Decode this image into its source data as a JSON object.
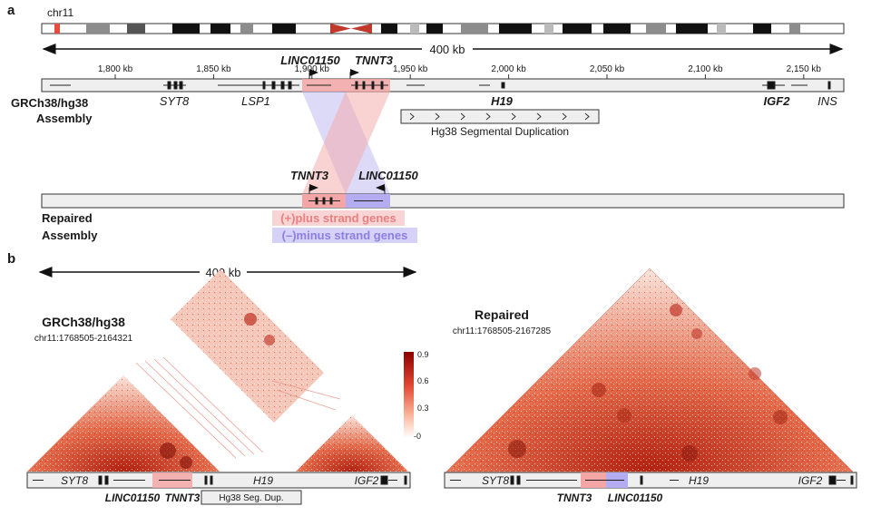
{
  "panel_a": {
    "label": "a",
    "chromosome": "chr11",
    "span": "400 kb",
    "ticks": [
      "1,800 kb",
      "1,850 kb",
      "1,900 kb",
      "1,950 kb",
      "2,000 kb",
      "2,050 kb",
      "2,100 kb",
      "2,150 kb"
    ],
    "track_label_line1": "GRCh38/hg38",
    "track_label_line2": "Assembly",
    "genes_top": [
      "LINC01150",
      "TNNT3"
    ],
    "genes_bottom": [
      "SYT8",
      "LSP1",
      "H19",
      "IGF2",
      "INS"
    ],
    "segdup_label": "Hg38 Segmental Duplication",
    "repaired_genes": [
      "TNNT3",
      "LINC01150"
    ],
    "repaired_label_line1": "Repaired",
    "repaired_label_line2": "Assembly",
    "legend_plus": "(+)plus strand genes",
    "legend_minus": "(–)minus strand genes",
    "colors": {
      "plus": "#f4a6a6",
      "minus": "#b3acf0",
      "centromere": "#c0392b"
    }
  },
  "panel_b": {
    "label": "b",
    "span": "400 kb",
    "left_title": "GRCh38/hg38",
    "left_coords": "chr11:1768505-2164321",
    "right_title": "Repaired",
    "right_coords": "chr11:1768505-2167285",
    "colorbar_ticks": [
      "0.9",
      "0.6",
      "0.3",
      "-0"
    ],
    "left_genes": {
      "syt8": "SYT8",
      "h19": "H19",
      "igf2": "IGF2",
      "linc": "LINC01150",
      "tnnt3": "TNNT3",
      "segdup": "Hg38 Seg. Dup."
    },
    "right_genes": {
      "syt8": "SYT8",
      "h19": "H19",
      "igf2": "IGF2",
      "tnnt3": "TNNT3",
      "linc": "LINC01150"
    }
  }
}
